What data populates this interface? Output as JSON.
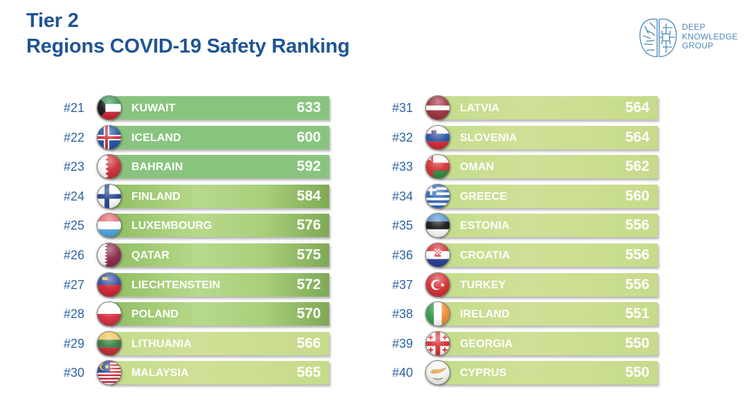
{
  "header": {
    "title_line1": "Tier 2",
    "title_line2": "Regions COVID-19 Safety Ranking"
  },
  "logo": {
    "icon": "brain-circuit-icon",
    "line1": "DEEP",
    "line2": "KNOWLEDGE",
    "line3": "GROUP",
    "color": "#4a86b8"
  },
  "colors": {
    "title": "#1f5493",
    "rank": "#2d63a0",
    "bar_tier_a": "#89c47f",
    "bar_tier_b": "#a9cf7c",
    "bar_tier_c": "#c9dc8e"
  },
  "chart_data": {
    "type": "bar",
    "title": "Tier 2 Regions COVID-19 Safety Ranking",
    "xlabel": "",
    "ylabel": "",
    "categories": [
      "Kuwait",
      "Iceland",
      "Bahrain",
      "Finland",
      "Luxembourg",
      "Qatar",
      "Liechtenstein",
      "Poland",
      "Lithuania",
      "Malaysia",
      "Latvia",
      "Slovenia",
      "Oman",
      "Greece",
      "Estonia",
      "Croatia",
      "Turkey",
      "Ireland",
      "Georgia",
      "Cyprus"
    ],
    "values": [
      633,
      600,
      592,
      584,
      576,
      575,
      572,
      570,
      566,
      565,
      564,
      564,
      562,
      560,
      556,
      556,
      556,
      551,
      550,
      550
    ],
    "left_column": [
      {
        "rank": "#21",
        "name": "KUWAIT",
        "score": "633",
        "flag": "kuwait-flag-icon",
        "style": "t1"
      },
      {
        "rank": "#22",
        "name": "ICELAND",
        "score": "600",
        "flag": "iceland-flag-icon",
        "style": "t1"
      },
      {
        "rank": "#23",
        "name": "BAHRAIN",
        "score": "592",
        "flag": "bahrain-flag-icon",
        "style": "t1"
      },
      {
        "rank": "#24",
        "name": "FINLAND",
        "score": "584",
        "flag": "finland-flag-icon",
        "style": "t2"
      },
      {
        "rank": "#25",
        "name": "LUXEMBOURG",
        "score": "576",
        "flag": "luxembourg-flag-icon",
        "style": "t2"
      },
      {
        "rank": "#26",
        "name": "QATAR",
        "score": "575",
        "flag": "qatar-flag-icon",
        "style": "t2"
      },
      {
        "rank": "#27",
        "name": "LIECHTENSTEIN",
        "score": "572",
        "flag": "liechtenstein-flag-icon",
        "style": "t2"
      },
      {
        "rank": "#28",
        "name": "POLAND",
        "score": "570",
        "flag": "poland-flag-icon",
        "style": "t2"
      },
      {
        "rank": "#29",
        "name": "LITHUANIA",
        "score": "566",
        "flag": "lithuania-flag-icon",
        "style": "t3"
      },
      {
        "rank": "#30",
        "name": "MALAYSIA",
        "score": "565",
        "flag": "malaysia-flag-icon",
        "style": "t3"
      }
    ],
    "right_column": [
      {
        "rank": "#31",
        "name": "LATVIA",
        "score": "564",
        "flag": "latvia-flag-icon",
        "style": "t3"
      },
      {
        "rank": "#32",
        "name": "SLOVENIA",
        "score": "564",
        "flag": "slovenia-flag-icon",
        "style": "t3"
      },
      {
        "rank": "#33",
        "name": "OMAN",
        "score": "562",
        "flag": "oman-flag-icon",
        "style": "t3"
      },
      {
        "rank": "#34",
        "name": "GREECE",
        "score": "560",
        "flag": "greece-flag-icon",
        "style": "t3"
      },
      {
        "rank": "#35",
        "name": "ESTONIA",
        "score": "556",
        "flag": "estonia-flag-icon",
        "style": "t3"
      },
      {
        "rank": "#36",
        "name": "CROATIA",
        "score": "556",
        "flag": "croatia-flag-icon",
        "style": "t3"
      },
      {
        "rank": "#37",
        "name": "TURKEY",
        "score": "556",
        "flag": "turkey-flag-icon",
        "style": "t3"
      },
      {
        "rank": "#38",
        "name": "IRELAND",
        "score": "551",
        "flag": "ireland-flag-icon",
        "style": "t3"
      },
      {
        "rank": "#39",
        "name": "GEORGIA",
        "score": "550",
        "flag": "georgia-flag-icon",
        "style": "t3"
      },
      {
        "rank": "#40",
        "name": "CYPRUS",
        "score": "550",
        "flag": "cyprus-flag-icon",
        "style": "t3"
      }
    ]
  }
}
